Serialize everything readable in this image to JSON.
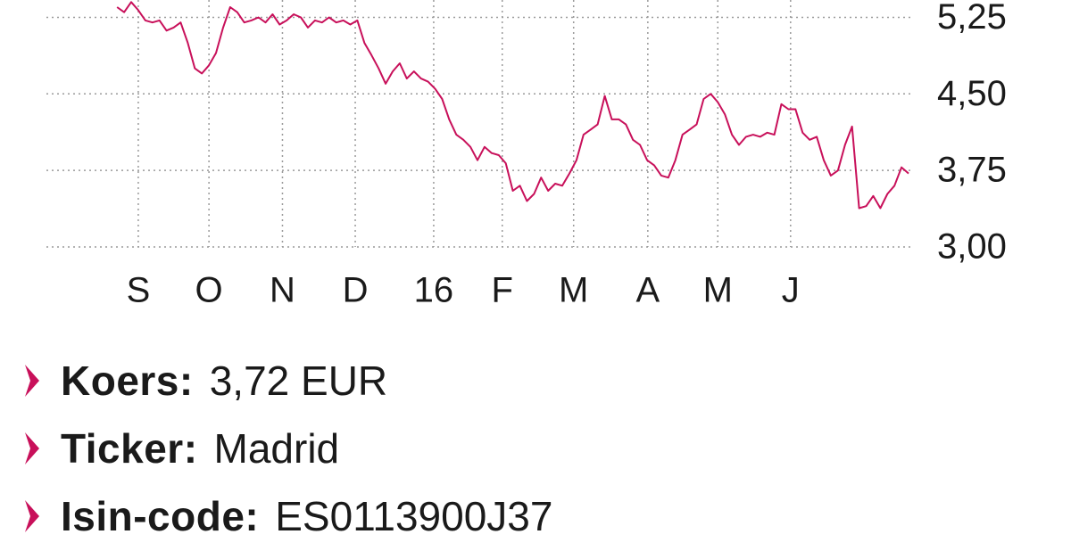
{
  "chart_data": {
    "type": "line",
    "series": [
      {
        "color": "#c8105a",
        "values": [
          5.35,
          5.3,
          5.4,
          5.32,
          5.22,
          5.2,
          5.22,
          5.12,
          5.15,
          5.2,
          5.0,
          4.75,
          4.7,
          4.78,
          4.9,
          5.15,
          5.35,
          5.3,
          5.2,
          5.22,
          5.25,
          5.2,
          5.28,
          5.18,
          5.22,
          5.28,
          5.25,
          5.15,
          5.22,
          5.2,
          5.25,
          5.2,
          5.22,
          5.18,
          5.22,
          5.0,
          4.88,
          4.75,
          4.6,
          4.72,
          4.8,
          4.65,
          4.72,
          4.65,
          4.62,
          4.55,
          4.45,
          4.25,
          4.1,
          4.05,
          3.98,
          3.85,
          3.98,
          3.92,
          3.9,
          3.82,
          3.55,
          3.6,
          3.45,
          3.52,
          3.68,
          3.55,
          3.62,
          3.6,
          3.72,
          3.85,
          4.1,
          4.15,
          4.2,
          4.48,
          4.25,
          4.25,
          4.2,
          4.05,
          4.0,
          3.85,
          3.8,
          3.7,
          3.68,
          3.85,
          4.1,
          4.15,
          4.2,
          4.45,
          4.5,
          4.42,
          4.3,
          4.1,
          4.0,
          4.08,
          4.1,
          4.08,
          4.12,
          4.1,
          4.4,
          4.35,
          4.35,
          4.12,
          4.05,
          4.08,
          3.85,
          3.7,
          3.75,
          4.0,
          4.18,
          3.38,
          3.4,
          3.5,
          3.38,
          3.52,
          3.6,
          3.78,
          3.72
        ]
      }
    ],
    "xlim": [
      -10,
      112.5
    ],
    "xticks": [
      {
        "value": 3,
        "label": "S"
      },
      {
        "value": 13,
        "label": "O"
      },
      {
        "value": 23.4,
        "label": "N"
      },
      {
        "value": 33.7,
        "label": "D"
      },
      {
        "value": 44.8,
        "label": "16"
      },
      {
        "value": 54.5,
        "label": "F"
      },
      {
        "value": 64.6,
        "label": "M"
      },
      {
        "value": 75.1,
        "label": "A"
      },
      {
        "value": 85,
        "label": "M"
      },
      {
        "value": 95.3,
        "label": "J"
      }
    ],
    "ylim": [
      3.0,
      5.42
    ],
    "yticks": [
      {
        "value": 3.0,
        "label": "3,00"
      },
      {
        "value": 3.75,
        "label": "3,75"
      },
      {
        "value": 4.5,
        "label": "4,50"
      },
      {
        "value": 5.25,
        "label": "5,25"
      }
    ],
    "grid": true
  },
  "info": [
    {
      "label": "Koers:",
      "value": "3,72 EUR"
    },
    {
      "label": "Ticker:",
      "value": "Madrid"
    },
    {
      "label": "Isin-code:",
      "value": "ES0113900J37"
    }
  ]
}
